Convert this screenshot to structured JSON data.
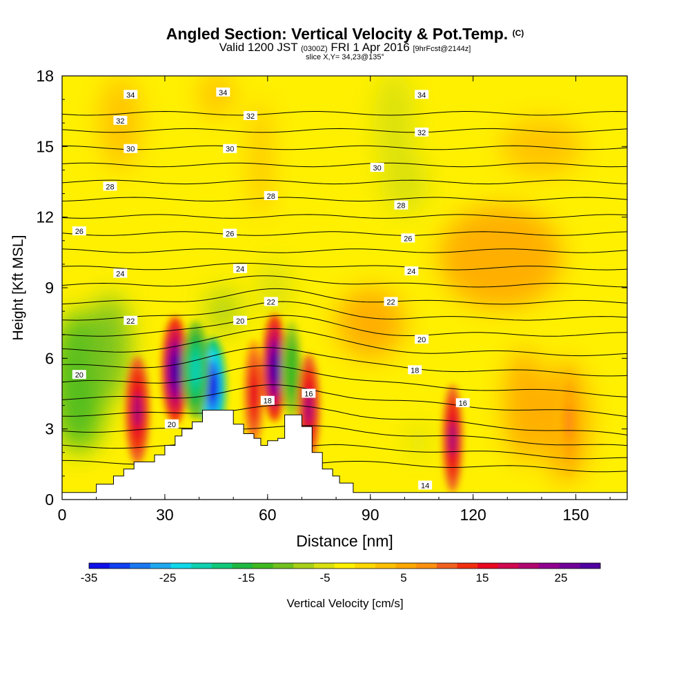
{
  "titles": {
    "main": "Angled Section: Vertical Velocity & Pot.Temp.",
    "main_mark": "(C)",
    "valid_a": "Valid 1200 JST",
    "valid_b": "(0300Z)",
    "valid_c": "FRI 1 Apr 2016",
    "valid_d": "[9hrFcst@2144z]",
    "slice": "slice X,Y= 34,23@135°"
  },
  "chart_data": {
    "type": "heatmap",
    "title": "Angled Section: Vertical Velocity & Pot.Temp. (C)",
    "xlabel": "Distance [nm]",
    "ylabel": "Height [Kft MSL]",
    "xlim": [
      0,
      165
    ],
    "ylim": [
      0,
      18
    ],
    "xticks": [
      "0",
      "30",
      "60",
      "90",
      "120",
      "150"
    ],
    "yticks": [
      "0",
      "3",
      "6",
      "9",
      "12",
      "15",
      "18"
    ],
    "colorbar": {
      "label": "Vertical Velocity [cm/s]",
      "ticks": [
        "-35",
        "-25",
        "-15",
        "-5",
        "5",
        "15",
        "25"
      ],
      "range": [
        -35,
        30
      ],
      "colors": [
        "#1010e8",
        "#1040f0",
        "#1a78f0",
        "#20a8f0",
        "#10d8e8",
        "#10d0b0",
        "#10c878",
        "#20b840",
        "#40b820",
        "#70c020",
        "#a8d018",
        "#d8e010",
        "#fff000",
        "#ffd800",
        "#ffc000",
        "#ffa800",
        "#ff9010",
        "#f06020",
        "#f03010",
        "#e80820",
        "#d00850",
        "#b00870",
        "#900090",
        "#700098",
        "#5000a0"
      ]
    },
    "terrain_kft": [
      [
        0,
        0.3
      ],
      [
        10,
        0.3
      ],
      [
        10,
        0.65
      ],
      [
        15,
        0.65
      ],
      [
        15,
        1.0
      ],
      [
        18,
        1.0
      ],
      [
        18,
        1.3
      ],
      [
        21,
        1.3
      ],
      [
        21,
        1.6
      ],
      [
        27,
        1.6
      ],
      [
        27,
        1.9
      ],
      [
        30,
        1.9
      ],
      [
        30,
        2.3
      ],
      [
        33,
        2.3
      ],
      [
        33,
        2.7
      ],
      [
        35,
        2.7
      ],
      [
        35,
        3.0
      ],
      [
        38,
        3.0
      ],
      [
        38,
        3.3
      ],
      [
        41,
        3.3
      ],
      [
        41,
        3.8
      ],
      [
        50,
        3.8
      ],
      [
        50,
        3.2
      ],
      [
        53,
        3.2
      ],
      [
        53,
        2.8
      ],
      [
        56,
        2.8
      ],
      [
        56,
        2.6
      ],
      [
        58,
        2.6
      ],
      [
        58,
        2.3
      ],
      [
        60,
        2.3
      ],
      [
        60,
        2.5
      ],
      [
        63,
        2.5
      ],
      [
        63,
        2.6
      ],
      [
        65,
        2.6
      ],
      [
        65,
        3.6
      ],
      [
        70,
        3.6
      ],
      [
        70,
        3.1
      ],
      [
        73,
        3.1
      ],
      [
        73,
        2.0
      ],
      [
        76,
        2.0
      ],
      [
        76,
        1.3
      ],
      [
        79,
        1.3
      ],
      [
        79,
        1.0
      ],
      [
        81,
        1.0
      ],
      [
        81,
        0.7
      ],
      [
        85,
        0.7
      ],
      [
        85,
        0.3
      ],
      [
        165,
        0.3
      ]
    ],
    "theta_labels": [
      {
        "text": "34",
        "x": 20,
        "y": 17.2
      },
      {
        "text": "34",
        "x": 47,
        "y": 17.3
      },
      {
        "text": "34",
        "x": 105,
        "y": 17.2
      },
      {
        "text": "32",
        "x": 17,
        "y": 16.1
      },
      {
        "text": "32",
        "x": 55,
        "y": 16.3
      },
      {
        "text": "32",
        "x": 105,
        "y": 15.6
      },
      {
        "text": "30",
        "x": 20,
        "y": 14.9
      },
      {
        "text": "30",
        "x": 49,
        "y": 14.9
      },
      {
        "text": "30",
        "x": 92,
        "y": 14.1
      },
      {
        "text": "28",
        "x": 14,
        "y": 13.3
      },
      {
        "text": "28",
        "x": 61,
        "y": 12.9
      },
      {
        "text": "28",
        "x": 99,
        "y": 12.5
      },
      {
        "text": "26",
        "x": 5,
        "y": 11.4
      },
      {
        "text": "26",
        "x": 49,
        "y": 11.3
      },
      {
        "text": "26",
        "x": 101,
        "y": 11.1
      },
      {
        "text": "24",
        "x": 17,
        "y": 9.6
      },
      {
        "text": "24",
        "x": 52,
        "y": 9.8
      },
      {
        "text": "24",
        "x": 102,
        "y": 9.7
      },
      {
        "text": "22",
        "x": 20,
        "y": 7.6
      },
      {
        "text": "22",
        "x": 61,
        "y": 8.4
      },
      {
        "text": "22",
        "x": 96,
        "y": 8.4
      },
      {
        "text": "20",
        "x": 5,
        "y": 5.3
      },
      {
        "text": "20",
        "x": 52,
        "y": 7.6
      },
      {
        "text": "20",
        "x": 105,
        "y": 6.8
      },
      {
        "text": "18",
        "x": 103,
        "y": 5.5
      },
      {
        "text": "18",
        "x": 60,
        "y": 4.2
      },
      {
        "text": "16",
        "x": 72,
        "y": 4.5
      },
      {
        "text": "16",
        "x": 117,
        "y": 4.1
      },
      {
        "text": "20",
        "x": 32,
        "y": 3.2
      },
      {
        "text": "14",
        "x": 106,
        "y": 0.6
      }
    ],
    "velocity_features": [
      {
        "x": 22,
        "y": 3.8,
        "w": 20,
        "h": 0.9
      },
      {
        "x": 33,
        "y": 5.5,
        "w": 28,
        "h": 1.0
      },
      {
        "x": 44,
        "y": 4.8,
        "w": -35,
        "h": 1.0
      },
      {
        "x": 39,
        "y": 5.5,
        "w": -22,
        "h": 1.0
      },
      {
        "x": 56,
        "y": 4.5,
        "w": 15,
        "h": 0.7
      },
      {
        "x": 62,
        "y": 5.6,
        "w": 28,
        "h": 0.9
      },
      {
        "x": 67,
        "y": 5.5,
        "w": -14,
        "h": 0.7
      },
      {
        "x": 72,
        "y": 3.9,
        "w": 20,
        "h": 0.8
      },
      {
        "x": 114,
        "y": 2.6,
        "w": 20,
        "h": 0.7
      },
      {
        "x": 148,
        "y": 3.3,
        "w": 7,
        "h": 0.9
      }
    ]
  }
}
